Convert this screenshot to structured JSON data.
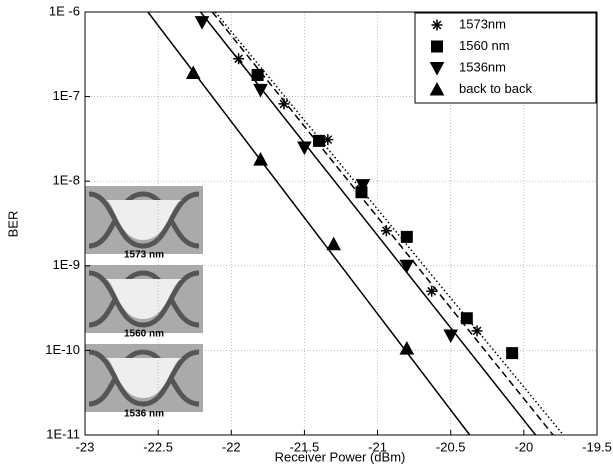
{
  "chart_data": {
    "type": "scatter",
    "x_label": "Receiver Power (dBm)",
    "y_label": "BER",
    "log_y": true,
    "grid": true,
    "legend_position": "upper right",
    "xlim": [
      -23,
      -19.5
    ],
    "ylim": [
      1e-11,
      1e-06
    ],
    "xticks": [
      -23,
      -22.5,
      -22,
      -21.5,
      -21,
      -20.5,
      -20,
      -19.5
    ],
    "yticks": [
      {
        "value": 1e-06,
        "label": "1E -6"
      },
      {
        "value": 1e-07,
        "label": "1E-7"
      },
      {
        "value": 1e-08,
        "label": "1E-8"
      },
      {
        "value": 1e-09,
        "label": "1E-9"
      },
      {
        "value": 1e-10,
        "label": "1E-10"
      },
      {
        "value": 1e-11,
        "label": "1E-11"
      }
    ],
    "series": [
      {
        "name": "1573nm",
        "marker": "star",
        "color": "#000000",
        "x": [
          -21.95,
          -21.64,
          -21.34,
          -20.94,
          -20.63,
          -20.32
        ],
        "values": [
          2.8e-07,
          8.2e-08,
          3.1e-08,
          2.6e-09,
          5e-10,
          1.7e-10
        ]
      },
      {
        "name": "1560 nm",
        "marker": "square",
        "color": "#000000",
        "x": [
          -21.82,
          -21.4,
          -21.11,
          -20.8,
          -20.39,
          -20.08
        ],
        "values": [
          1.8e-07,
          3e-08,
          7.4e-09,
          2.2e-09,
          2.4e-10,
          9.3e-11
        ]
      },
      {
        "name": "1536nm",
        "marker": "triangle-down",
        "color": "#000000",
        "x": [
          -22.2,
          -21.8,
          -21.5,
          -21.1,
          -20.8,
          -20.5
        ],
        "values": [
          7.6e-07,
          1.2e-07,
          2.5e-08,
          9e-09,
          1e-09,
          1.5e-10
        ]
      },
      {
        "name": "back to back",
        "marker": "triangle-up",
        "color": "#000000",
        "x": [
          -22.26,
          -21.8,
          -21.3,
          -20.8
        ],
        "values": [
          1.9e-07,
          1.8e-08,
          1.8e-09,
          1.05e-10
        ]
      }
    ],
    "fit_lines": [
      {
        "style": "dotted",
        "x": [
          -22.11,
          -19.73
        ],
        "y": [
          1e-06,
          1e-11
        ]
      },
      {
        "style": "dashed",
        "x": [
          -22.13,
          -19.8
        ],
        "y": [
          1e-06,
          1e-11
        ]
      },
      {
        "style": "solid",
        "x": [
          -22.21,
          -19.92
        ],
        "y": [
          1e-06,
          1e-11
        ]
      },
      {
        "style": "solid",
        "x": [
          -22.57,
          -20.37
        ],
        "y": [
          1e-06,
          1e-11
        ]
      }
    ],
    "inset_labels": [
      "1573 nm",
      "1560 nm",
      "1536 nm"
    ]
  }
}
